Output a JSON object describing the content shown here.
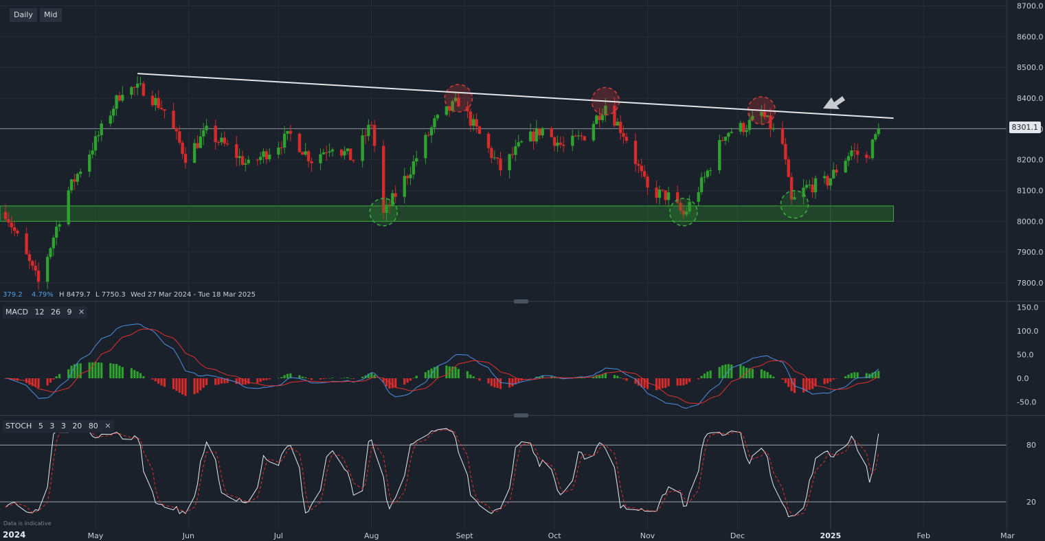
{
  "toolbar": {
    "timeframe": "Daily",
    "price_type": "Mid"
  },
  "stats": {
    "change": "379.2",
    "change_pct": "4.79%",
    "high": "H 8479.7",
    "low": "L 7750.3",
    "range": "Wed 27 Mar 2024 - Tue 18 Mar 2025"
  },
  "last_price": "8301.1",
  "macd_label": {
    "name": "MACD",
    "p1": "12",
    "p2": "26",
    "p3": "9"
  },
  "stoch_label": {
    "name": "STOCH",
    "p1": "5",
    "p2": "3",
    "p3": "3",
    "p4": "20",
    "p5": "80"
  },
  "disclaimer": "Data is indicative",
  "year_label": "2024",
  "colors": {
    "up": "#2fa12f",
    "down": "#d62b2b",
    "macd_line": "#4a90e2",
    "signal_line": "#e03030",
    "support_zone": "#2c8a2c"
  },
  "chart_data": {
    "type": "candlestick",
    "title": "",
    "price_axis": {
      "min": 7800,
      "max": 8700,
      "ticks": [
        "8700.0",
        "8600.0",
        "8500.0",
        "8400.0",
        "8300.0",
        "8200.0",
        "8100.0",
        "8000.0",
        "7900.0",
        "7800.0"
      ]
    },
    "time_axis": {
      "labels": [
        "May",
        "Jun",
        "Jul",
        "Aug",
        "Sept",
        "Oct",
        "Nov",
        "Dec",
        "2025",
        "Feb",
        "Mar"
      ]
    },
    "last_price": 8301.1,
    "support_zone": [
      8000,
      8050
    ],
    "resistance_line": {
      "from": [
        "2024-05-15",
        8480
      ],
      "to": [
        "2025-01-22",
        8335
      ]
    },
    "anchor_points": [
      [
        "2024-04-01",
        8030
      ],
      [
        "2024-04-12",
        7800
      ],
      [
        "2024-04-22",
        8100
      ],
      [
        "2024-05-01",
        8260
      ],
      [
        "2024-05-10",
        8430
      ],
      [
        "2024-05-17",
        8430
      ],
      [
        "2024-05-24",
        8360
      ],
      [
        "2024-05-31",
        8210
      ],
      [
        "2024-06-07",
        8290
      ],
      [
        "2024-06-14",
        8240
      ],
      [
        "2024-06-21",
        8180
      ],
      [
        "2024-06-28",
        8230
      ],
      [
        "2024-07-05",
        8280
      ],
      [
        "2024-07-12",
        8200
      ],
      [
        "2024-07-19",
        8250
      ],
      [
        "2024-07-26",
        8200
      ],
      [
        "2024-08-01",
        8320
      ],
      [
        "2024-08-05",
        8020
      ],
      [
        "2024-08-14",
        8170
      ],
      [
        "2024-08-22",
        8320
      ],
      [
        "2024-08-30",
        8390
      ],
      [
        "2024-09-06",
        8280
      ],
      [
        "2024-09-13",
        8170
      ],
      [
        "2024-09-20",
        8250
      ],
      [
        "2024-09-27",
        8300
      ],
      [
        "2024-10-04",
        8240
      ],
      [
        "2024-10-11",
        8280
      ],
      [
        "2024-10-18",
        8380
      ],
      [
        "2024-10-25",
        8270
      ],
      [
        "2024-11-01",
        8100
      ],
      [
        "2024-11-08",
        8080
      ],
      [
        "2024-11-13",
        8020
      ],
      [
        "2024-11-20",
        8140
      ],
      [
        "2024-11-27",
        8290
      ],
      [
        "2024-12-04",
        8310
      ],
      [
        "2024-12-09",
        8350
      ],
      [
        "2024-12-16",
        8250
      ],
      [
        "2024-12-19",
        8060
      ],
      [
        "2024-12-24",
        8110
      ],
      [
        "2024-12-31",
        8130
      ],
      [
        "2025-01-08",
        8230
      ],
      [
        "2025-01-13",
        8200
      ],
      [
        "2025-01-17",
        8301
      ]
    ],
    "candles": [],
    "macd": {
      "params": [
        12,
        26,
        9
      ],
      "y_ticks": [
        "150.0",
        "100.0",
        "50.0",
        "0.0",
        "-50.0"
      ],
      "y_range": [
        -80,
        155
      ]
    },
    "stoch": {
      "params": [
        5,
        3,
        3,
        20,
        80
      ],
      "levels": [
        80,
        20
      ],
      "y_ticks": [
        "80",
        "20"
      ],
      "y_range": [
        0,
        100
      ]
    }
  }
}
